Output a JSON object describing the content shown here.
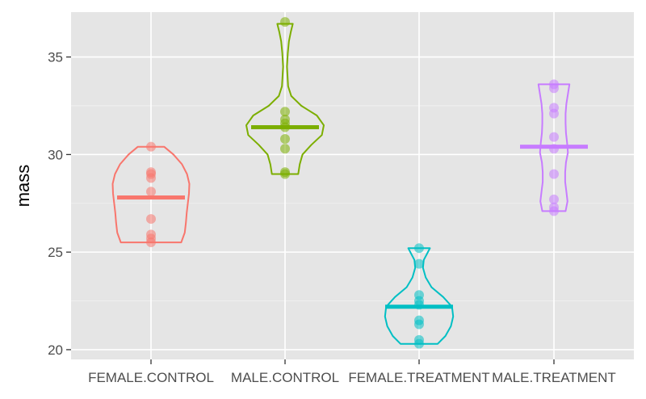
{
  "chart_data": {
    "type": "violin",
    "title": "",
    "xlabel": "",
    "ylabel": "mass",
    "ylim": [
      19.5,
      37.3
    ],
    "yticks": [
      20,
      25,
      30,
      35
    ],
    "grid": true,
    "background": "#e5e5e5",
    "legend": "none",
    "categories": [
      "FEMALE.CONTROL",
      "MALE.CONTROL",
      "FEMALE.TREATMENT",
      "MALE.TREATMENT"
    ],
    "series": [
      {
        "category": "FEMALE.CONTROL",
        "color": "#f8766d",
        "mean": 27.8,
        "points": [
          30.4,
          29.1,
          29.0,
          28.8,
          28.1,
          26.7,
          25.9,
          25.7,
          25.5
        ],
        "violin": [
          [
            25.5,
            0.78
          ],
          [
            26.0,
            0.87
          ],
          [
            26.5,
            0.9
          ],
          [
            27.0,
            0.92
          ],
          [
            27.5,
            0.95
          ],
          [
            28.0,
            0.98
          ],
          [
            28.5,
            0.99
          ],
          [
            29.0,
            0.93
          ],
          [
            29.5,
            0.8
          ],
          [
            30.0,
            0.58
          ],
          [
            30.4,
            0.34
          ]
        ]
      },
      {
        "category": "MALE.CONTROL",
        "color": "#7cae00",
        "mean": 31.4,
        "points": [
          36.8,
          32.2,
          31.8,
          31.6,
          31.4,
          30.8,
          30.3,
          29.1,
          29.0
        ],
        "violin": [
          [
            29.0,
            0.34
          ],
          [
            29.5,
            0.38
          ],
          [
            30.0,
            0.45
          ],
          [
            30.5,
            0.68
          ],
          [
            31.0,
            0.95
          ],
          [
            31.5,
            1.0
          ],
          [
            32.0,
            0.82
          ],
          [
            32.5,
            0.42
          ],
          [
            33.0,
            0.16
          ],
          [
            33.5,
            0.08
          ],
          [
            34.5,
            0.05
          ],
          [
            35.2,
            0.07
          ],
          [
            35.8,
            0.1
          ],
          [
            36.3,
            0.15
          ],
          [
            36.7,
            0.2
          ]
        ]
      },
      {
        "category": "FEMALE.TREATMENT",
        "color": "#00bfc4",
        "mean": 22.2,
        "points": [
          25.2,
          24.4,
          22.8,
          22.5,
          22.3,
          21.5,
          21.3,
          20.5,
          20.3
        ],
        "violin": [
          [
            20.3,
            0.48
          ],
          [
            20.7,
            0.68
          ],
          [
            21.2,
            0.82
          ],
          [
            21.7,
            0.88
          ],
          [
            22.2,
            0.85
          ],
          [
            22.7,
            0.62
          ],
          [
            23.2,
            0.32
          ],
          [
            23.7,
            0.17
          ],
          [
            24.2,
            0.1
          ],
          [
            24.6,
            0.12
          ],
          [
            24.9,
            0.2
          ],
          [
            25.2,
            0.28
          ]
        ]
      },
      {
        "category": "MALE.TREATMENT",
        "color": "#c77cff",
        "mean": 30.4,
        "points": [
          33.6,
          33.4,
          32.4,
          32.1,
          30.9,
          30.3,
          29.0,
          27.7,
          27.3,
          27.1
        ],
        "violin": [
          [
            27.1,
            0.3
          ],
          [
            27.6,
            0.35
          ],
          [
            28.1,
            0.32
          ],
          [
            28.6,
            0.29
          ],
          [
            29.1,
            0.29
          ],
          [
            29.6,
            0.31
          ],
          [
            30.1,
            0.36
          ],
          [
            30.6,
            0.34
          ],
          [
            31.1,
            0.31
          ],
          [
            31.6,
            0.3
          ],
          [
            32.1,
            0.3
          ],
          [
            32.6,
            0.32
          ],
          [
            33.1,
            0.36
          ],
          [
            33.6,
            0.4
          ]
        ]
      }
    ]
  }
}
